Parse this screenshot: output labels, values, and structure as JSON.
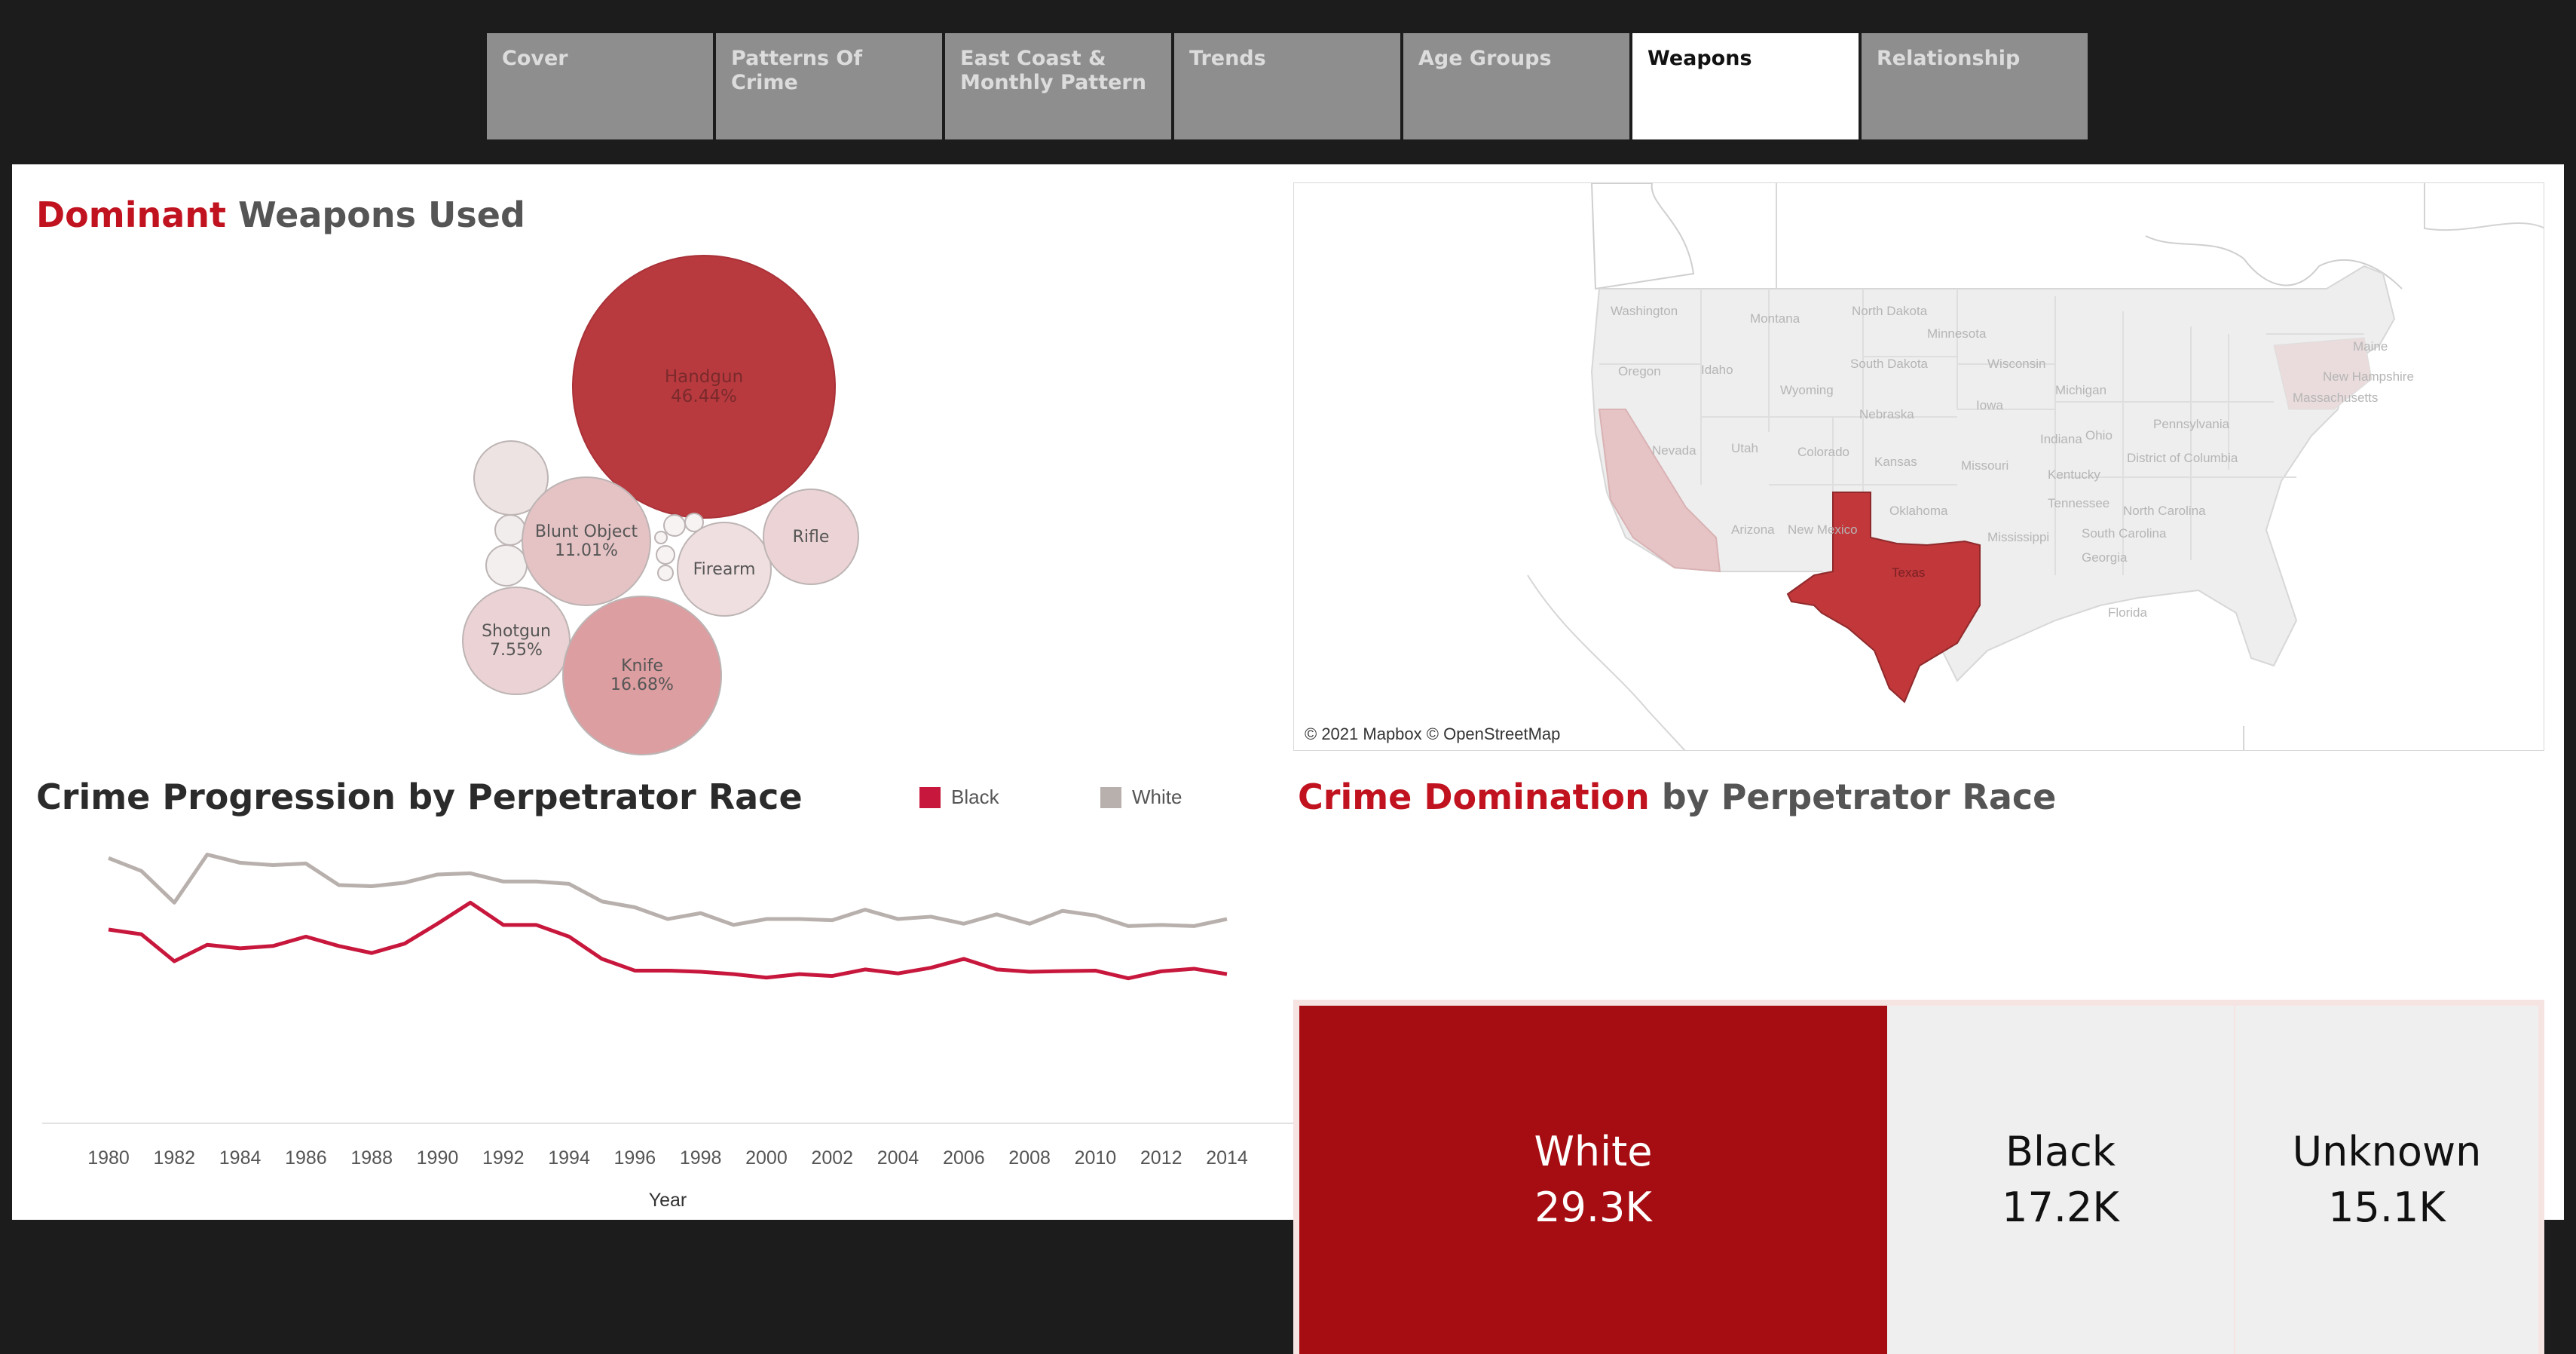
{
  "tabs": [
    {
      "label": "Cover",
      "active": false
    },
    {
      "label": "Patterns Of Crime",
      "active": false
    },
    {
      "label": "East Coast & Monthly Pattern",
      "active": false
    },
    {
      "label": "Trends",
      "active": false
    },
    {
      "label": "Age Groups",
      "active": false
    },
    {
      "label": "Weapons",
      "active": true
    },
    {
      "label": "Relationship",
      "active": false
    }
  ],
  "weapons_panel": {
    "title_accent": "Dominant",
    "title_rest": "Weapons Used",
    "bubbles": [
      {
        "name": "Handgun",
        "pct": "46.44%"
      },
      {
        "name": "Blunt Object",
        "pct": "11.01%"
      },
      {
        "name": "Firearm",
        "pct": ""
      },
      {
        "name": "Rifle",
        "pct": ""
      },
      {
        "name": "Shotgun",
        "pct": "7.55%"
      },
      {
        "name": "Knife",
        "pct": "16.68%"
      }
    ]
  },
  "map_panel": {
    "credit": "© 2021 Mapbox © OpenStreetMap",
    "highlight_state": "Texas",
    "state_labels": [
      "Washington",
      "Montana",
      "North Dakota",
      "Minnesota",
      "Wisconsin",
      "Maine",
      "Oregon",
      "Idaho",
      "South Dakota",
      "Wyoming",
      "Michigan",
      "New Hampshire",
      "Massachusetts",
      "Iowa",
      "Nebraska",
      "Nevada",
      "Utah",
      "Colorado",
      "Indiana",
      "Ohio",
      "Pennsylvania",
      "Kansas",
      "Missouri",
      "Kentucky",
      "District of Columbia",
      "Oklahoma",
      "Tennessee",
      "North Carolina",
      "Arizona",
      "New Mexico",
      "Mississippi",
      "South Carolina",
      "Georgia",
      "Texas",
      "Florida"
    ],
    "colors": {
      "highlight": "#c1373a",
      "light": "#e9d2d3",
      "base": "#eeeeee"
    }
  },
  "progression_panel": {
    "title": "Crime Progression by Perpetrator Race",
    "legend": [
      {
        "label": "Black",
        "color": "#c8173c"
      },
      {
        "label": "White",
        "color": "#b8b0ac"
      }
    ]
  },
  "domination_panel": {
    "title_accent": "Crime Domination",
    "title_rest": "by Perpetrator Race",
    "cells": [
      {
        "label": "White",
        "value": "29.3K"
      },
      {
        "label": "Black",
        "value": "17.2K"
      },
      {
        "label": "Unknown",
        "value": "15.1K"
      }
    ]
  },
  "chart_data": {
    "type": "line",
    "xlabel": "Year",
    "x": [
      1980,
      1981,
      1982,
      1983,
      1984,
      1985,
      1986,
      1987,
      1988,
      1989,
      1990,
      1991,
      1992,
      1993,
      1994,
      1995,
      1996,
      1997,
      1998,
      1999,
      2000,
      2001,
      2002,
      2003,
      2004,
      2005,
      2006,
      2007,
      2008,
      2009,
      2010,
      2011,
      2012,
      2013,
      2014
    ],
    "xticks": [
      1980,
      1982,
      1984,
      1986,
      1988,
      1990,
      1992,
      1994,
      1996,
      1998,
      2000,
      2002,
      2004,
      2006,
      2008,
      2010,
      2012,
      2014
    ],
    "ylim": [
      0,
      1100
    ],
    "series": [
      {
        "name": "White",
        "values": [
          1035,
          980,
          845,
          1050,
          1015,
          1005,
          1012,
          920,
          915,
          930,
          965,
          970,
          935,
          935,
          925,
          850,
          825,
          775,
          800,
          750,
          775,
          775,
          770,
          815,
          775,
          785,
          755,
          795,
          755,
          810,
          790,
          745,
          750,
          745,
          775
        ]
      },
      {
        "name": "Black",
        "values": [
          730,
          710,
          595,
          665,
          650,
          660,
          700,
          660,
          630,
          670,
          755,
          845,
          750,
          750,
          700,
          605,
          555,
          555,
          550,
          540,
          525,
          540,
          532,
          560,
          543,
          567,
          605,
          560,
          550,
          553,
          555,
          522,
          552,
          563,
          540
        ]
      }
    ]
  }
}
